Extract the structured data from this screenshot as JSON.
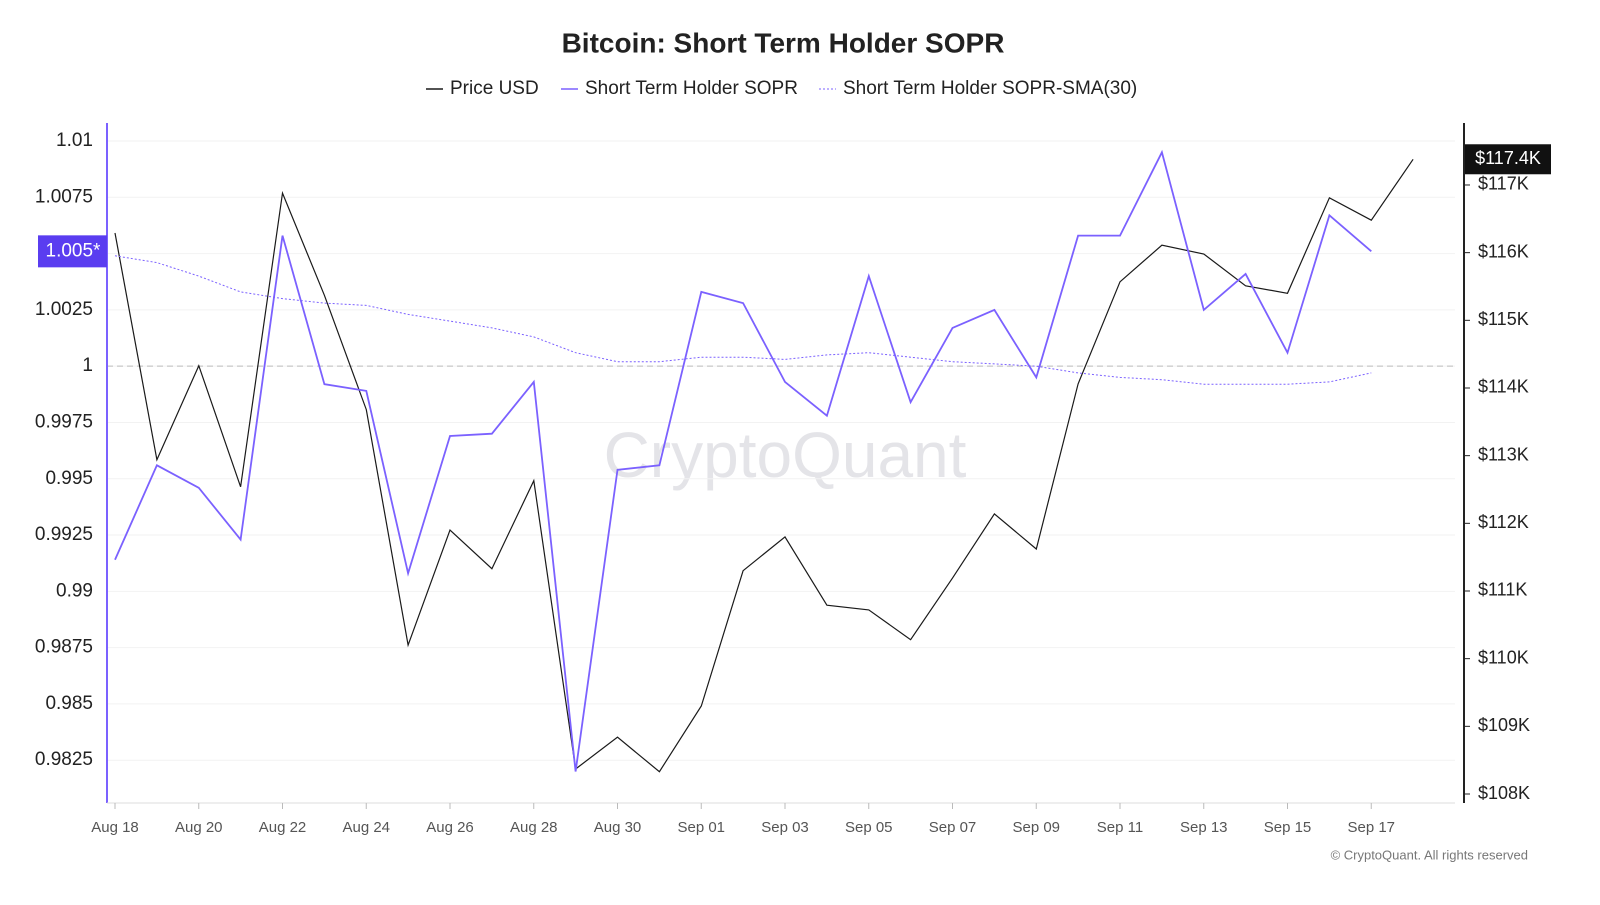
{
  "chart_data": {
    "type": "line",
    "title": "Bitcoin: Short Term Holder SOPR",
    "watermark": "CryptoQuant",
    "footer": "© CryptoQuant. All rights reserved",
    "categories": [
      "Aug 18",
      null,
      "Aug 20",
      null,
      "Aug 22",
      null,
      "Aug 24",
      null,
      "Aug 26",
      null,
      "Aug 28",
      null,
      "Aug 30",
      null,
      "Sep 01",
      null,
      "Sep 03",
      null,
      "Sep 05",
      null,
      "Sep 07",
      null,
      "Sep 09",
      null,
      "Sep 11",
      null,
      "Sep 13",
      null,
      "Sep 15",
      null,
      "Sep 17",
      null
    ],
    "series": [
      {
        "name": "Price USD",
        "color": "#1a1a1a",
        "axis": "y2",
        "style": "solid",
        "last_label": "$117.4K",
        "values": [
          116290,
          112940,
          114330,
          112540,
          116880,
          115370,
          113680,
          110200,
          111900,
          111330,
          112630,
          108370,
          108840,
          108330,
          109300,
          111300,
          111800,
          110790,
          110720,
          110280,
          111190,
          112140,
          111620,
          114060,
          115570,
          116110,
          115980,
          115510,
          115400,
          116810,
          116480,
          117380
        ]
      },
      {
        "name": "Short Term Holder SOPR",
        "color": "#7b61ff",
        "style": "solid",
        "last_label": "1.005*",
        "values": [
          0.9914,
          0.9956,
          0.9946,
          0.9923,
          1.0058,
          0.9992,
          0.9989,
          0.9908,
          0.9969,
          0.997,
          0.9993,
          0.982,
          0.9954,
          0.9956,
          1.0033,
          1.0028,
          0.9993,
          0.9978,
          1.004,
          0.9984,
          1.0017,
          1.0025,
          0.9995,
          1.0058,
          1.0058,
          1.0095,
          1.0025,
          1.0041,
          1.0006,
          1.0067,
          1.0051,
          null
        ]
      },
      {
        "name": "Short Term Holder SOPR-SMA(30)",
        "color": "#7b61ff",
        "style": "dotted",
        "values": [
          1.0049,
          1.0046,
          1.004,
          1.0033,
          1.003,
          1.0028,
          1.0027,
          1.0023,
          1.002,
          1.0017,
          1.0013,
          1.0006,
          1.0002,
          1.0002,
          1.0004,
          1.0004,
          1.0003,
          1.0005,
          1.0006,
          1.0004,
          1.0002,
          1.0001,
          1.0,
          0.9997,
          0.9995,
          0.9994,
          0.9992,
          0.9992,
          0.9992,
          0.9993,
          0.9997,
          null
        ]
      }
    ],
    "ylim": [
      0.9806,
      1.0108
    ],
    "yticks": [
      0.9825,
      0.985,
      0.9875,
      0.99,
      0.9925,
      0.995,
      0.9975,
      1,
      1.0025,
      1.005,
      1.0075,
      1.01
    ],
    "y2lim": [
      107867,
      117916
    ],
    "y2ticks": [
      {
        "value": 108000,
        "label": "$108K"
      },
      {
        "value": 109000,
        "label": "$109K"
      },
      {
        "value": 110000,
        "label": "$110K"
      },
      {
        "value": 111000,
        "label": "$111K"
      },
      {
        "value": 112000,
        "label": "$112K"
      },
      {
        "value": 113000,
        "label": "$113K"
      },
      {
        "value": 114000,
        "label": "$114K"
      },
      {
        "value": 115000,
        "label": "$115K"
      },
      {
        "value": 116000,
        "label": "$116K"
      },
      {
        "value": 117000,
        "label": "$117K"
      }
    ],
    "hline": 1,
    "grid": true,
    "legend": "top"
  }
}
